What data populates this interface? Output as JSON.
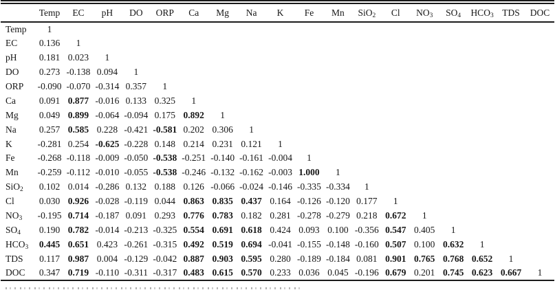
{
  "page": {
    "background": "#ffffff",
    "text_color": "#161616",
    "rule_color": "#1a1a1a"
  },
  "table": {
    "kind": "correlation-matrix",
    "header": [
      {
        "base": ""
      },
      {
        "base": "Temp"
      },
      {
        "base": "EC"
      },
      {
        "base": "pH"
      },
      {
        "base": "DO"
      },
      {
        "base": "ORP"
      },
      {
        "base": "Ca"
      },
      {
        "base": "Mg"
      },
      {
        "base": "Na"
      },
      {
        "base": "K"
      },
      {
        "base": "Fe"
      },
      {
        "base": "Mn"
      },
      {
        "base": "SiO",
        "sub": "2"
      },
      {
        "base": "Cl"
      },
      {
        "base": "NO",
        "sub": "3"
      },
      {
        "base": "SO",
        "sub": "4"
      },
      {
        "base": "HCO",
        "sub": "3"
      },
      {
        "base": "TDS"
      },
      {
        "base": "DOC"
      }
    ],
    "rows": [
      {
        "label": {
          "base": "Temp"
        },
        "values": [
          {
            "v": "1"
          }
        ]
      },
      {
        "label": {
          "base": "EC"
        },
        "values": [
          {
            "v": "0.136"
          },
          {
            "v": "1"
          }
        ]
      },
      {
        "label": {
          "base": "pH"
        },
        "values": [
          {
            "v": "0.181"
          },
          {
            "v": "0.023"
          },
          {
            "v": "1"
          }
        ]
      },
      {
        "label": {
          "base": "DO"
        },
        "values": [
          {
            "v": "0.273"
          },
          {
            "v": "-0.138"
          },
          {
            "v": "0.094"
          },
          {
            "v": "1"
          }
        ]
      },
      {
        "label": {
          "base": "ORP"
        },
        "values": [
          {
            "v": "-0.090"
          },
          {
            "v": "-0.070"
          },
          {
            "v": "-0.314"
          },
          {
            "v": "0.357"
          },
          {
            "v": "1"
          }
        ]
      },
      {
        "label": {
          "base": "Ca"
        },
        "values": [
          {
            "v": "0.091"
          },
          {
            "v": "0.877",
            "bold": true
          },
          {
            "v": "-0.016"
          },
          {
            "v": "0.133"
          },
          {
            "v": "0.325"
          },
          {
            "v": "1"
          }
        ]
      },
      {
        "label": {
          "base": "Mg"
        },
        "values": [
          {
            "v": "0.049"
          },
          {
            "v": "0.899",
            "bold": true
          },
          {
            "v": "-0.064"
          },
          {
            "v": "-0.094"
          },
          {
            "v": "0.175"
          },
          {
            "v": "0.892",
            "bold": true
          },
          {
            "v": "1"
          }
        ]
      },
      {
        "label": {
          "base": "Na"
        },
        "values": [
          {
            "v": "0.257"
          },
          {
            "v": "0.585",
            "bold": true
          },
          {
            "v": "0.228"
          },
          {
            "v": "-0.421"
          },
          {
            "v": "-0.581",
            "bold": true
          },
          {
            "v": "0.202"
          },
          {
            "v": "0.306"
          },
          {
            "v": "1"
          }
        ]
      },
      {
        "label": {
          "base": "K"
        },
        "values": [
          {
            "v": "-0.281"
          },
          {
            "v": "0.254"
          },
          {
            "v": "-0.625",
            "bold": true
          },
          {
            "v": "-0.228"
          },
          {
            "v": "0.148"
          },
          {
            "v": "0.214"
          },
          {
            "v": "0.231"
          },
          {
            "v": "0.121"
          },
          {
            "v": "1"
          }
        ]
      },
      {
        "label": {
          "base": "Fe"
        },
        "values": [
          {
            "v": "-0.268"
          },
          {
            "v": "-0.118"
          },
          {
            "v": "-0.009"
          },
          {
            "v": "-0.050"
          },
          {
            "v": "-0.538",
            "bold": true
          },
          {
            "v": "-0.251"
          },
          {
            "v": "-0.140"
          },
          {
            "v": "-0.161"
          },
          {
            "v": "-0.004"
          },
          {
            "v": "1"
          }
        ]
      },
      {
        "label": {
          "base": "Mn"
        },
        "values": [
          {
            "v": "-0.259"
          },
          {
            "v": "-0.112"
          },
          {
            "v": "-0.010"
          },
          {
            "v": "-0.055"
          },
          {
            "v": "-0.538",
            "bold": true
          },
          {
            "v": "-0.246"
          },
          {
            "v": "-0.132"
          },
          {
            "v": "-0.162"
          },
          {
            "v": "-0.003"
          },
          {
            "v": "1.000",
            "bold": true
          },
          {
            "v": "1"
          }
        ]
      },
      {
        "label": {
          "base": "SiO",
          "sub": "2"
        },
        "values": [
          {
            "v": "0.102"
          },
          {
            "v": "0.014"
          },
          {
            "v": "-0.286"
          },
          {
            "v": "0.132"
          },
          {
            "v": "0.188"
          },
          {
            "v": "0.126"
          },
          {
            "v": "-0.066"
          },
          {
            "v": "-0.024"
          },
          {
            "v": "-0.146"
          },
          {
            "v": "-0.335"
          },
          {
            "v": "-0.334"
          },
          {
            "v": "1"
          }
        ]
      },
      {
        "label": {
          "base": "Cl"
        },
        "values": [
          {
            "v": "0.030"
          },
          {
            "v": "0.926",
            "bold": true
          },
          {
            "v": "-0.028"
          },
          {
            "v": "-0.119"
          },
          {
            "v": "0.044"
          },
          {
            "v": "0.863",
            "bold": true
          },
          {
            "v": "0.835",
            "bold": true
          },
          {
            "v": "0.437",
            "bold": true
          },
          {
            "v": "0.164"
          },
          {
            "v": "-0.126"
          },
          {
            "v": "-0.120"
          },
          {
            "v": "0.177"
          },
          {
            "v": "1"
          }
        ]
      },
      {
        "label": {
          "base": "NO",
          "sub": "3"
        },
        "values": [
          {
            "v": "-0.195"
          },
          {
            "v": "0.714",
            "bold": true
          },
          {
            "v": "-0.187"
          },
          {
            "v": "0.091"
          },
          {
            "v": "0.293"
          },
          {
            "v": "0.776",
            "bold": true
          },
          {
            "v": "0.783",
            "bold": true
          },
          {
            "v": "0.182"
          },
          {
            "v": "0.281"
          },
          {
            "v": "-0.278"
          },
          {
            "v": "-0.279"
          },
          {
            "v": "0.218"
          },
          {
            "v": "0.672",
            "bold": true
          },
          {
            "v": "1"
          }
        ]
      },
      {
        "label": {
          "base": "SO",
          "sub": "4"
        },
        "values": [
          {
            "v": "0.190"
          },
          {
            "v": "0.782",
            "bold": true
          },
          {
            "v": "-0.014"
          },
          {
            "v": "-0.213"
          },
          {
            "v": "-0.325"
          },
          {
            "v": "0.554",
            "bold": true
          },
          {
            "v": "0.691",
            "bold": true
          },
          {
            "v": "0.618",
            "bold": true
          },
          {
            "v": "0.424"
          },
          {
            "v": "0.093"
          },
          {
            "v": "0.100"
          },
          {
            "v": "-0.356"
          },
          {
            "v": "0.547",
            "bold": true
          },
          {
            "v": "0.405"
          },
          {
            "v": "1"
          }
        ]
      },
      {
        "label": {
          "base": "HCO",
          "sub": "3"
        },
        "values": [
          {
            "v": "0.445",
            "bold": true
          },
          {
            "v": "0.651",
            "bold": true
          },
          {
            "v": "0.423"
          },
          {
            "v": "-0.261"
          },
          {
            "v": "-0.315"
          },
          {
            "v": "0.492",
            "bold": true
          },
          {
            "v": "0.519",
            "bold": true
          },
          {
            "v": "0.694",
            "bold": true
          },
          {
            "v": "-0.041"
          },
          {
            "v": "-0.155"
          },
          {
            "v": "-0.148"
          },
          {
            "v": "-0.160"
          },
          {
            "v": "0.507",
            "bold": true
          },
          {
            "v": "0.100"
          },
          {
            "v": "0.632",
            "bold": true
          },
          {
            "v": "1"
          }
        ]
      },
      {
        "label": {
          "base": "TDS"
        },
        "values": [
          {
            "v": "0.117"
          },
          {
            "v": "0.987",
            "bold": true
          },
          {
            "v": "0.004"
          },
          {
            "v": "-0.129"
          },
          {
            "v": "-0.042"
          },
          {
            "v": "0.887",
            "bold": true
          },
          {
            "v": "0.903",
            "bold": true
          },
          {
            "v": "0.595",
            "bold": true
          },
          {
            "v": "0.280"
          },
          {
            "v": "-0.189"
          },
          {
            "v": "-0.184"
          },
          {
            "v": "0.081"
          },
          {
            "v": "0.901",
            "bold": true
          },
          {
            "v": "0.765",
            "bold": true
          },
          {
            "v": "0.768",
            "bold": true
          },
          {
            "v": "0.652",
            "bold": true
          },
          {
            "v": "1"
          }
        ]
      },
      {
        "label": {
          "base": "DOC"
        },
        "values": [
          {
            "v": "0.347"
          },
          {
            "v": "0.719",
            "bold": true
          },
          {
            "v": "-0.110"
          },
          {
            "v": "-0.311"
          },
          {
            "v": "-0.317"
          },
          {
            "v": "0.483",
            "bold": true
          },
          {
            "v": "0.615",
            "bold": true
          },
          {
            "v": "0.570",
            "bold": true
          },
          {
            "v": "0.233"
          },
          {
            "v": "0.036"
          },
          {
            "v": "0.045"
          },
          {
            "v": "-0.196"
          },
          {
            "v": "0.679",
            "bold": true
          },
          {
            "v": "0.201"
          },
          {
            "v": "0.745",
            "bold": true
          },
          {
            "v": "0.623",
            "bold": true
          },
          {
            "v": "0.667",
            "bold": true
          },
          {
            "v": "1"
          }
        ]
      }
    ]
  }
}
